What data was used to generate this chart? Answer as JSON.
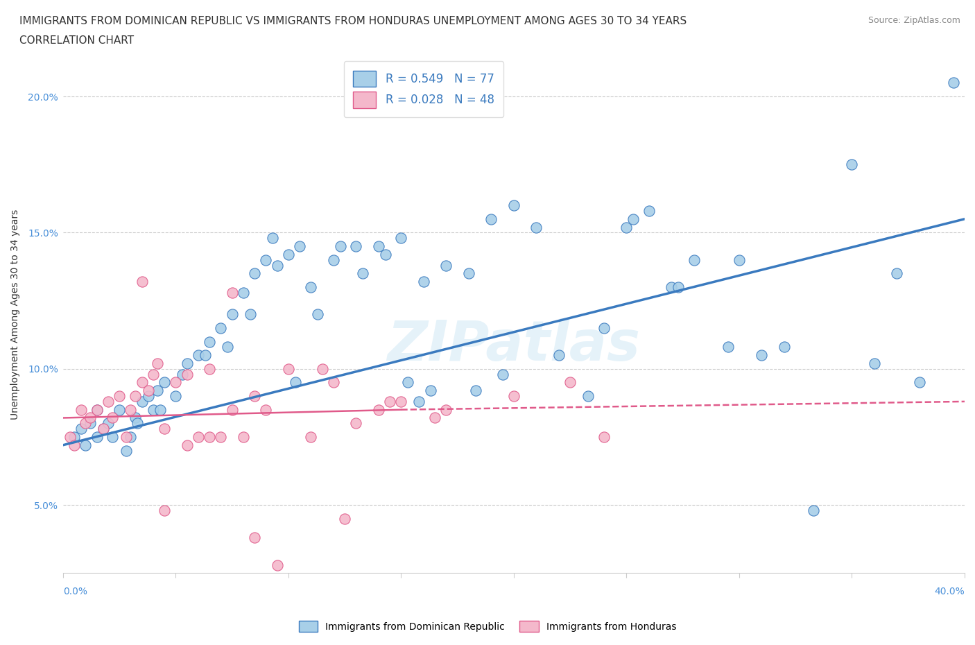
{
  "title_line1": "IMMIGRANTS FROM DOMINICAN REPUBLIC VS IMMIGRANTS FROM HONDURAS UNEMPLOYMENT AMONG AGES 30 TO 34 YEARS",
  "title_line2": "CORRELATION CHART",
  "source_text": "Source: ZipAtlas.com",
  "ylabel": "Unemployment Among Ages 30 to 34 years",
  "yticks": [
    5.0,
    10.0,
    15.0,
    20.0
  ],
  "xticks": [
    0.0,
    5.0,
    10.0,
    15.0,
    20.0,
    25.0,
    30.0,
    35.0,
    40.0
  ],
  "xlim": [
    0.0,
    40.0
  ],
  "ylim": [
    2.5,
    21.5
  ],
  "legend_r1": "R = 0.549   N = 77",
  "legend_r2": "R = 0.028   N = 48",
  "color_blue": "#a8cfe8",
  "color_pink": "#f4b8cb",
  "color_blue_dark": "#3a7abf",
  "color_pink_dark": "#e05a8a",
  "watermark": "ZIPatlas",
  "dr_x": [
    0.5,
    0.8,
    1.0,
    1.2,
    1.5,
    1.5,
    1.8,
    2.0,
    2.2,
    2.5,
    2.8,
    3.0,
    3.2,
    3.5,
    3.8,
    4.0,
    4.2,
    4.5,
    5.0,
    5.5,
    6.0,
    6.5,
    7.0,
    7.5,
    8.0,
    8.5,
    9.0,
    9.5,
    10.0,
    10.5,
    11.0,
    12.0,
    13.0,
    14.0,
    15.0,
    16.0,
    17.0,
    18.0,
    19.0,
    20.0,
    21.0,
    22.0,
    24.0,
    25.0,
    26.0,
    27.0,
    28.0,
    30.0,
    31.0,
    32.0,
    35.0,
    36.0,
    37.0,
    38.0,
    3.3,
    4.3,
    5.3,
    6.3,
    7.3,
    8.3,
    9.3,
    10.3,
    11.3,
    12.3,
    13.3,
    14.3,
    15.3,
    16.3,
    18.3,
    23.3,
    25.3,
    27.3,
    33.3,
    19.5,
    29.5,
    39.5,
    15.8
  ],
  "dr_y": [
    7.5,
    7.8,
    7.2,
    8.0,
    7.5,
    8.5,
    7.8,
    8.0,
    7.5,
    8.5,
    7.0,
    7.5,
    8.2,
    8.8,
    9.0,
    8.5,
    9.2,
    9.5,
    9.0,
    10.2,
    10.5,
    11.0,
    11.5,
    12.0,
    12.8,
    13.5,
    14.0,
    13.8,
    14.2,
    14.5,
    13.0,
    14.0,
    14.5,
    14.5,
    14.8,
    13.2,
    13.8,
    13.5,
    15.5,
    16.0,
    15.2,
    10.5,
    11.5,
    15.2,
    15.8,
    13.0,
    14.0,
    14.0,
    10.5,
    10.8,
    17.5,
    10.2,
    13.5,
    9.5,
    8.0,
    8.5,
    9.8,
    10.5,
    10.8,
    12.0,
    14.8,
    9.5,
    12.0,
    14.5,
    13.5,
    14.2,
    9.5,
    9.2,
    9.2,
    9.0,
    15.5,
    13.0,
    4.8,
    9.8,
    10.8,
    20.5,
    8.8
  ],
  "hn_x": [
    0.3,
    0.5,
    0.8,
    1.0,
    1.2,
    1.5,
    1.8,
    2.0,
    2.2,
    2.5,
    2.8,
    3.0,
    3.2,
    3.5,
    3.8,
    4.0,
    4.2,
    4.5,
    5.0,
    5.5,
    6.0,
    6.5,
    7.0,
    7.5,
    8.0,
    8.5,
    9.0,
    10.0,
    11.0,
    12.0,
    13.0,
    14.0,
    15.0,
    17.0,
    20.0,
    22.5,
    3.5,
    4.5,
    5.5,
    6.5,
    7.5,
    8.5,
    9.5,
    11.5,
    12.5,
    16.5,
    24.0,
    14.5
  ],
  "hn_y": [
    7.5,
    7.2,
    8.5,
    8.0,
    8.2,
    8.5,
    7.8,
    8.8,
    8.2,
    9.0,
    7.5,
    8.5,
    9.0,
    9.5,
    9.2,
    9.8,
    10.2,
    7.8,
    9.5,
    9.8,
    7.5,
    10.0,
    7.5,
    8.5,
    7.5,
    9.0,
    8.5,
    10.0,
    7.5,
    9.5,
    8.0,
    8.5,
    8.8,
    8.5,
    9.0,
    9.5,
    13.2,
    4.8,
    7.2,
    7.5,
    12.8,
    3.8,
    2.8,
    10.0,
    4.5,
    8.2,
    7.5,
    8.8
  ],
  "dr_trendline_x": [
    0.0,
    40.0
  ],
  "dr_trendline_y": [
    7.2,
    15.5
  ],
  "hn_trendline_x": [
    0.0,
    40.0
  ],
  "hn_trendline_y": [
    8.2,
    8.8
  ],
  "title_fontsize": 11,
  "axis_label_fontsize": 10,
  "tick_fontsize": 10,
  "legend_fontsize": 12
}
